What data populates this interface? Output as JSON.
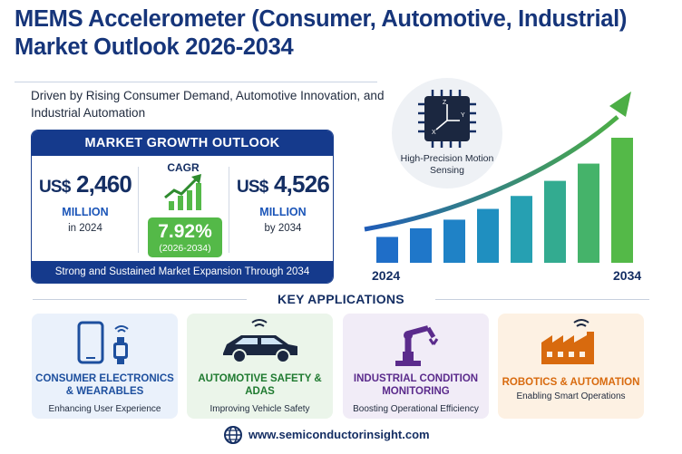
{
  "header": {
    "title": "MEMS Accelerometer (Consumer, Automotive, Industrial) Market Outlook 2026-2034",
    "subtitle": "Driven by Rising Consumer Demand, Automotive Innovation, and Industrial Automation"
  },
  "growth": {
    "heading": "MARKET GROWTH OUTLOOK",
    "start": {
      "currency": "US$",
      "value": "2,460",
      "unit": "MILLION",
      "year": "in 2024"
    },
    "cagr": {
      "label": "CAGR",
      "value": "7.92%",
      "range": "(2026-2034)"
    },
    "end": {
      "currency": "US$",
      "value": "4,526",
      "unit": "MILLION",
      "year": "by 2034"
    },
    "footer": "Strong and Sustained Market Expansion Through 2034"
  },
  "chart": {
    "badge": "High-Precision Motion Sensing",
    "start_label": "2024",
    "end_label": "2034"
  },
  "chart_data": {
    "type": "bar",
    "categories": [
      "2024",
      "",
      "",
      "",
      "",
      "",
      "",
      "2034"
    ],
    "values": [
      24,
      32,
      40,
      50,
      62,
      76,
      92,
      116
    ],
    "title": "",
    "xlabel": "",
    "ylabel": "",
    "trend_arrow": true
  },
  "applications": {
    "heading": "KEY APPLICATIONS",
    "items": [
      {
        "title": "CONSUMER ELECTRONICS & WEARABLES",
        "desc": "Enhancing User Experience",
        "icon": "smartphone-watch-icon",
        "color": "#1d4f9e",
        "bg": "#eaf1fb"
      },
      {
        "title": "AUTOMOTIVE SAFETY & ADAS",
        "desc": "Improving Vehicle Safety",
        "icon": "car-icon",
        "color": "#1f7a30",
        "bg": "#ebf5ea"
      },
      {
        "title": "INDUSTRIAL CONDITION MONITORING",
        "desc": "Boosting Operational Efficiency",
        "icon": "robot-arm-icon",
        "color": "#5b2b8c",
        "bg": "#f1ecf7"
      },
      {
        "title": "ROBOTICS & AUTOMATION",
        "desc": "Enabling Smart Operations",
        "icon": "factory-icon",
        "color": "#d86a0e",
        "bg": "#fdf1e3"
      }
    ]
  },
  "footer": {
    "website": "www.semiconductorinsight.com"
  },
  "colors": {
    "navy": "#153a8c",
    "green": "#54b948",
    "blue": "#1f6ec8"
  }
}
